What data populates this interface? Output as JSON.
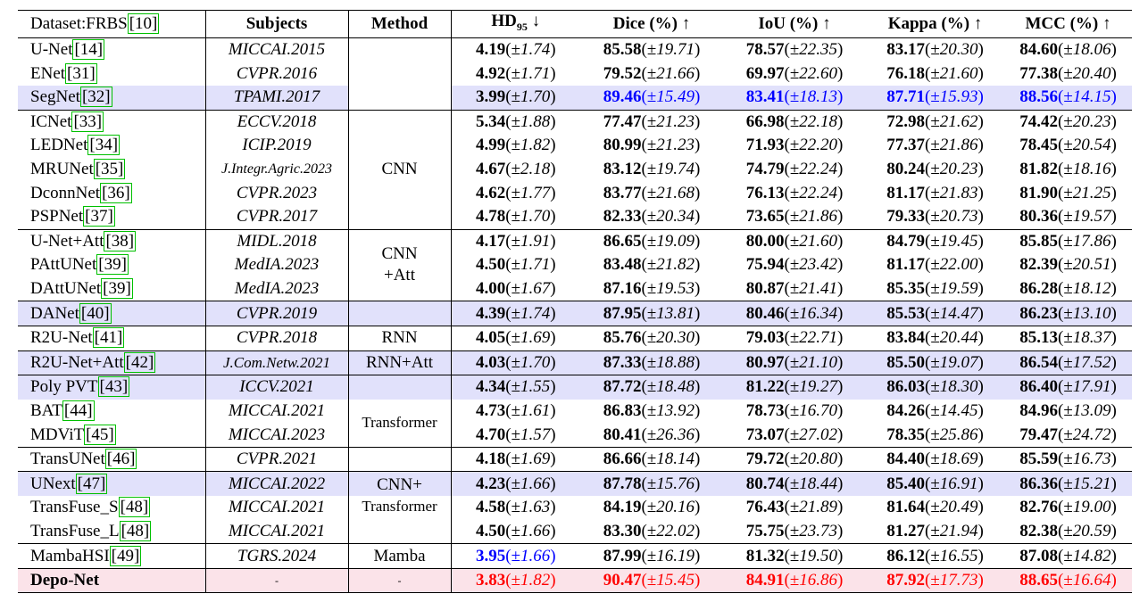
{
  "header": {
    "dataset": "Dataset:FRBS",
    "dataset_ref": "[10]",
    "subjects": "Subjects",
    "method": "Method",
    "hd": "HD",
    "hd_sub": "95",
    "hd_arrow": "↓",
    "dice": "Dice (%)",
    "iou": "IoU (%)",
    "kappa": "Kappa (%)",
    "mcc": "MCC (%)",
    "up_arrow": "↑"
  },
  "method_groups": [
    "CNN",
    "CNN",
    "+Att",
    "RNN",
    "RNN+Att",
    "Transformer",
    "CNN+",
    "Transformer",
    "Mamba",
    "-"
  ],
  "rows": [
    {
      "name": "U-Net",
      "ref": "[14]",
      "subj": "MICCAI.2015",
      "v": [
        "4.19",
        "±1.74",
        "85.58",
        "±19.71",
        "78.57",
        "±22.35",
        "83.17",
        "±20.30",
        "84.60",
        "±18.06"
      ]
    },
    {
      "name": "ENet",
      "ref": "[31]",
      "subj": "CVPR.2016",
      "v": [
        "4.92",
        "±1.71",
        "79.52",
        "±21.66",
        "69.97",
        "±22.60",
        "76.18",
        "±21.60",
        "77.38",
        "±20.40"
      ]
    },
    {
      "name": "SegNet",
      "ref": "[32]",
      "subj": "TPAMI.2017",
      "v": [
        "3.99",
        "±1.70",
        "89.46",
        "±15.49",
        "83.41",
        "±18.13",
        "87.71",
        "±15.93",
        "88.56",
        "±14.15"
      ]
    },
    {
      "name": "ICNet",
      "ref": "[33]",
      "subj": "ECCV.2018",
      "v": [
        "5.34",
        "±1.88",
        "77.47",
        "±21.23",
        "66.98",
        "±22.18",
        "72.98",
        "±21.62",
        "74.42",
        "±20.23"
      ]
    },
    {
      "name": "LEDNet",
      "ref": "[34]",
      "subj": "ICIP.2019",
      "v": [
        "4.99",
        "±1.82",
        "80.99",
        "±21.23",
        "71.93",
        "±22.20",
        "77.37",
        "±21.86",
        "78.45",
        "±20.54"
      ]
    },
    {
      "name": "MRUNet",
      "ref": "[35]",
      "subj": "J.Integr.Agric.2023",
      "v": [
        "4.67",
        "±2.18",
        "83.12",
        "±19.74",
        "74.79",
        "±22.24",
        "80.24",
        "±20.23",
        "81.82",
        "±18.16"
      ]
    },
    {
      "name": "DconnNet",
      "ref": "[36]",
      "subj": "CVPR.2023",
      "v": [
        "4.62",
        "±1.77",
        "83.77",
        "±21.68",
        "76.13",
        "±22.24",
        "81.17",
        "±21.83",
        "81.90",
        "±21.25"
      ]
    },
    {
      "name": "PSPNet",
      "ref": "[37]",
      "subj": "CVPR.2017",
      "v": [
        "4.78",
        "±1.70",
        "82.33",
        "±20.34",
        "73.65",
        "±21.86",
        "79.33",
        "±20.73",
        "80.36",
        "±19.57"
      ]
    },
    {
      "name": "U-Net+Att",
      "ref": "[38]",
      "subj": "MIDL.2018",
      "v": [
        "4.17",
        "±1.91",
        "86.65",
        "±19.09",
        "80.00",
        "±21.60",
        "84.79",
        "±19.45",
        "85.85",
        "±17.86"
      ]
    },
    {
      "name": "PAttUNet",
      "ref": "[39]",
      "subj": "MedIA.2023",
      "v": [
        "4.50",
        "±1.71",
        "83.48",
        "±21.82",
        "75.94",
        "±23.42",
        "81.17",
        "±22.00",
        "82.39",
        "±20.51"
      ]
    },
    {
      "name": "DAttUNet",
      "ref": "[39]",
      "subj": "MedIA.2023",
      "v": [
        "4.00",
        "±1.67",
        "87.16",
        "±19.53",
        "80.87",
        "±21.41",
        "85.35",
        "±19.59",
        "86.28",
        "±18.12"
      ]
    },
    {
      "name": "DANet",
      "ref": "[40]",
      "subj": "CVPR.2019",
      "v": [
        "4.39",
        "±1.74",
        "87.95",
        "±13.81",
        "80.46",
        "±16.34",
        "85.53",
        "±14.47",
        "86.23",
        "±13.10"
      ]
    },
    {
      "name": "R2U-Net",
      "ref": "[41]",
      "subj": "CVPR.2018",
      "v": [
        "4.05",
        "±1.69",
        "85.76",
        "±20.30",
        "79.03",
        "±22.71",
        "83.84",
        "±20.44",
        "85.13",
        "±18.37"
      ]
    },
    {
      "name": "R2U-Net+Att",
      "ref": "[42]",
      "subj": "J.Com.Netw.2021",
      "v": [
        "4.03",
        "±1.70",
        "87.33",
        "±18.88",
        "80.97",
        "±21.10",
        "85.50",
        "±19.07",
        "86.54",
        "±17.52"
      ]
    },
    {
      "name": "Poly PVT",
      "ref": "[43]",
      "subj": "ICCV.2021",
      "v": [
        "4.34",
        "±1.55",
        "87.72",
        "±18.48",
        "81.22",
        "±19.27",
        "86.03",
        "±18.30",
        "86.40",
        "±17.91"
      ]
    },
    {
      "name": "BAT",
      "ref": "[44]",
      "subj": "MICCAI.2021",
      "v": [
        "4.73",
        "±1.61",
        "86.83",
        "±13.92",
        "78.73",
        "±16.70",
        "84.26",
        "±14.45",
        "84.96",
        "±13.09"
      ]
    },
    {
      "name": "MDViT",
      "ref": "[45]",
      "subj": "MICCAI.2023",
      "v": [
        "4.70",
        "±1.57",
        "80.41",
        "±26.36",
        "73.07",
        "±27.02",
        "78.35",
        "±25.86",
        "79.47",
        "±24.72"
      ]
    },
    {
      "name": "TransUNet",
      "ref": "[46]",
      "subj": "CVPR.2021",
      "v": [
        "4.18",
        "±1.69",
        "86.66",
        "±18.14",
        "79.72",
        "±20.80",
        "84.40",
        "±18.69",
        "85.59",
        "±16.73"
      ]
    },
    {
      "name": "UNext",
      "ref": "[47]",
      "subj": "MICCAI.2022",
      "v": [
        "4.23",
        "±1.66",
        "87.78",
        "±15.76",
        "80.74",
        "±18.44",
        "85.40",
        "±16.91",
        "86.36",
        "±15.21"
      ]
    },
    {
      "name": "TransFuse_S",
      "ref": "[48]",
      "subj": "MICCAI.2021",
      "v": [
        "4.58",
        "±1.63",
        "84.19",
        "±20.16",
        "76.43",
        "±21.89",
        "81.64",
        "±20.49",
        "82.76",
        "±19.00"
      ]
    },
    {
      "name": "TransFuse_L",
      "ref": "[48]",
      "subj": "MICCAI.2021",
      "v": [
        "4.50",
        "±1.66",
        "83.30",
        "±22.02",
        "75.75",
        "±23.73",
        "81.27",
        "±21.94",
        "82.38",
        "±20.59"
      ]
    },
    {
      "name": "MambaHSI",
      "ref": "[49]",
      "subj": "TGRS.2024",
      "v": [
        "3.95",
        "±1.66",
        "87.99",
        "±16.19",
        "81.32",
        "±19.50",
        "86.12",
        "±16.55",
        "87.08",
        "±14.82"
      ]
    },
    {
      "name": "Depo-Net",
      "ref": "",
      "subj": "-",
      "v": [
        "3.83",
        "±1.82",
        "90.47",
        "±15.45",
        "84.91",
        "±16.86",
        "87.92",
        "±17.73",
        "88.65",
        "±16.64"
      ]
    }
  ],
  "colors": {
    "highlight_blue_row": "#e1e1fb",
    "highlight_pink_row": "#fbe3e9",
    "best": "#ff0000",
    "second": "#0000ff",
    "citation_box": "#00c000"
  }
}
